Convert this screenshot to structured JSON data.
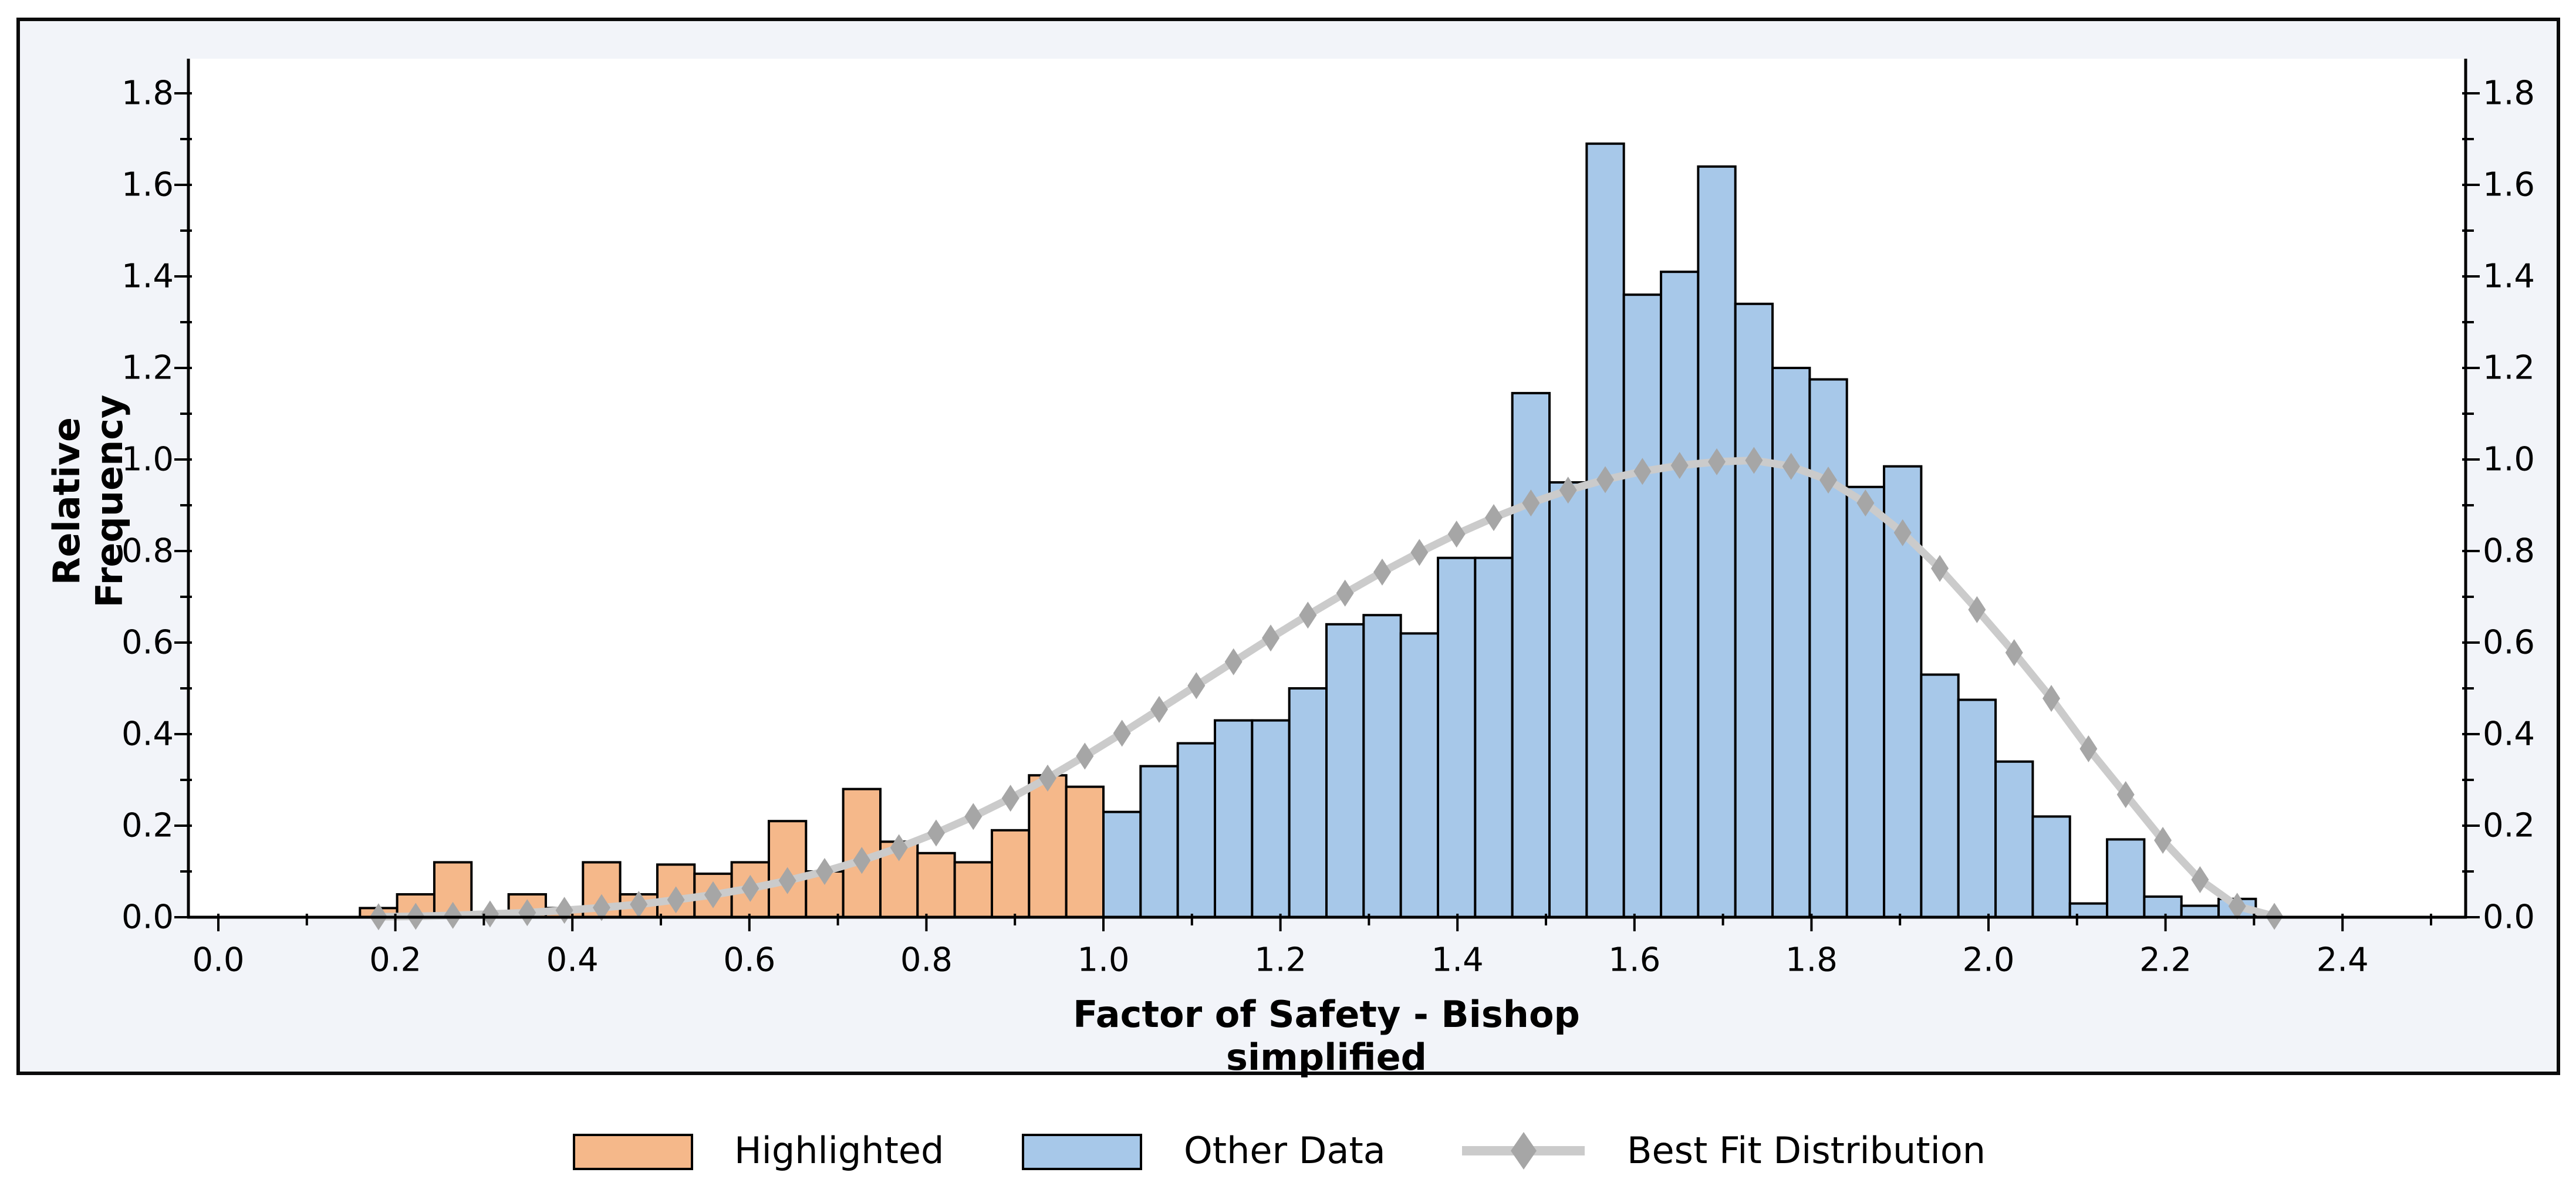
{
  "chart_data": {
    "type": "bar",
    "subtype": "histogram-with-fit-line",
    "title": "",
    "xlabel": "Factor of Safety - Bishop simplified",
    "ylabel": "Relative Frequency",
    "x_axis": {
      "min": 0.0,
      "max": 2.5,
      "major_ticks": [
        0.0,
        0.2,
        0.4,
        0.6,
        0.8,
        1.0,
        1.2,
        1.4,
        1.6,
        1.8,
        2.0,
        2.2,
        2.4
      ],
      "minor_ticks": [
        0.1,
        0.3,
        0.5,
        0.7,
        0.9,
        1.1,
        1.3,
        1.5,
        1.7,
        1.9,
        2.1,
        2.3,
        2.5
      ],
      "tick_label_decimals": 1
    },
    "y_axis": {
      "min": 0.0,
      "max": 1.875,
      "major_ticks": [
        0.0,
        0.2,
        0.4,
        0.6,
        0.8,
        1.0,
        1.2,
        1.4,
        1.6,
        1.8
      ],
      "minor_ticks": [
        0.1,
        0.3,
        0.5,
        0.7,
        0.9,
        1.1,
        1.3,
        1.5,
        1.7
      ],
      "tick_label_decimals": 1,
      "labels_on_right_side_too": true
    },
    "bins": {
      "start": 0.16,
      "width": 0.042
    },
    "series": [
      {
        "name": "Highlighted",
        "kind": "bars",
        "fill": "#F5B88A",
        "stroke": "#000000",
        "values": [
          0.02,
          0.05,
          0.12,
          0.0,
          0.05,
          0.02,
          0.12,
          0.05,
          0.115,
          0.095,
          0.12,
          0.21,
          0.1,
          0.28,
          0.165,
          0.14,
          0.12,
          0.19,
          0.31,
          0.285
        ]
      },
      {
        "name": "Other Data",
        "kind": "bars",
        "fill": "#A7C8E9",
        "stroke": "#000000",
        "values": [
          0.23,
          0.33,
          0.38,
          0.43,
          0.43,
          0.5,
          0.64,
          0.66,
          0.62,
          0.785,
          0.785,
          1.145,
          0.95,
          1.69,
          1.36,
          1.41,
          1.64,
          1.34,
          1.2,
          1.175,
          0.94,
          0.985,
          0.53,
          0.475,
          0.34,
          0.22,
          0.03,
          0.17,
          0.045,
          0.025,
          0.04
        ]
      },
      {
        "name": "Best Fit Distribution",
        "kind": "line",
        "line_color": "#CBCBCB",
        "marker": "diamond",
        "marker_color": "#A6A6A6",
        "x": [
          0.181,
          0.223,
          0.265,
          0.307,
          0.349,
          0.391,
          0.433,
          0.475,
          0.517,
          0.559,
          0.601,
          0.643,
          0.685,
          0.727,
          0.769,
          0.811,
          0.853,
          0.895,
          0.937,
          0.979,
          1.021,
          1.063,
          1.105,
          1.147,
          1.189,
          1.231,
          1.273,
          1.315,
          1.357,
          1.399,
          1.441,
          1.483,
          1.525,
          1.567,
          1.609,
          1.651,
          1.693,
          1.735,
          1.777,
          1.819,
          1.861,
          1.903,
          1.945,
          1.987,
          2.029,
          2.071,
          2.113,
          2.155,
          2.197,
          2.239,
          2.281,
          2.323
        ],
        "y": [
          0.001,
          0.002,
          0.004,
          0.007,
          0.01,
          0.015,
          0.021,
          0.028,
          0.038,
          0.049,
          0.063,
          0.08,
          0.1,
          0.124,
          0.152,
          0.184,
          0.22,
          0.26,
          0.304,
          0.352,
          0.402,
          0.454,
          0.506,
          0.558,
          0.61,
          0.66,
          0.708,
          0.754,
          0.797,
          0.837,
          0.873,
          0.905,
          0.933,
          0.956,
          0.974,
          0.987,
          0.995,
          0.998,
          0.985,
          0.955,
          0.905,
          0.84,
          0.762,
          0.672,
          0.578,
          0.478,
          0.368,
          0.268,
          0.168,
          0.082,
          0.024,
          0.002
        ]
      }
    ],
    "legend": {
      "position": "bottom",
      "items": [
        "Highlighted",
        "Other Data",
        "Best Fit Distribution"
      ]
    },
    "colors": {
      "plot_background": "#FFFFFF",
      "margin_background": "#F2F4F9",
      "frame_border": "#0B0B0B",
      "axis": "#000000",
      "tick_label": "#000000"
    },
    "grid": false
  }
}
